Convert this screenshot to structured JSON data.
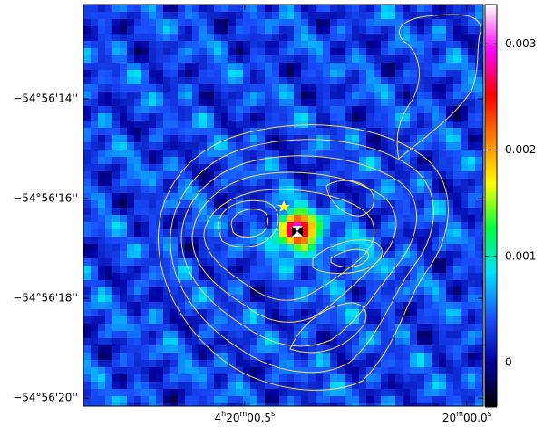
{
  "chart_data": {
    "type": "image",
    "yticks": [
      {
        "value": 14,
        "label": "−54°56'14''"
      },
      {
        "value": 16,
        "label": "−54°56'16''"
      },
      {
        "value": 18,
        "label": "−54°56'18''"
      },
      {
        "value": 20,
        "label": "−54°56'20''"
      }
    ],
    "ylim": [
      20.16,
      12.11
    ],
    "xticks": [
      {
        "value": 0.5,
        "label": "4h20m00.5s"
      },
      {
        "value": 0,
        "label": "20m00.0s"
      }
    ],
    "xlim": [
      0.863,
      -0.037
    ],
    "clim": [
      -0.00041,
      0.00337
    ],
    "cticks": [
      0,
      0.001,
      0.002,
      0.003
    ],
    "colormap": [
      "#000000",
      "#0000a0",
      "#1a50ff",
      "#00e0ff",
      "#00ff40",
      "#ffff00",
      "#ff8000",
      "#ff0000",
      "#ff00ff",
      "#ffffff"
    ],
    "contour_color": "#f0e060"
  }
}
